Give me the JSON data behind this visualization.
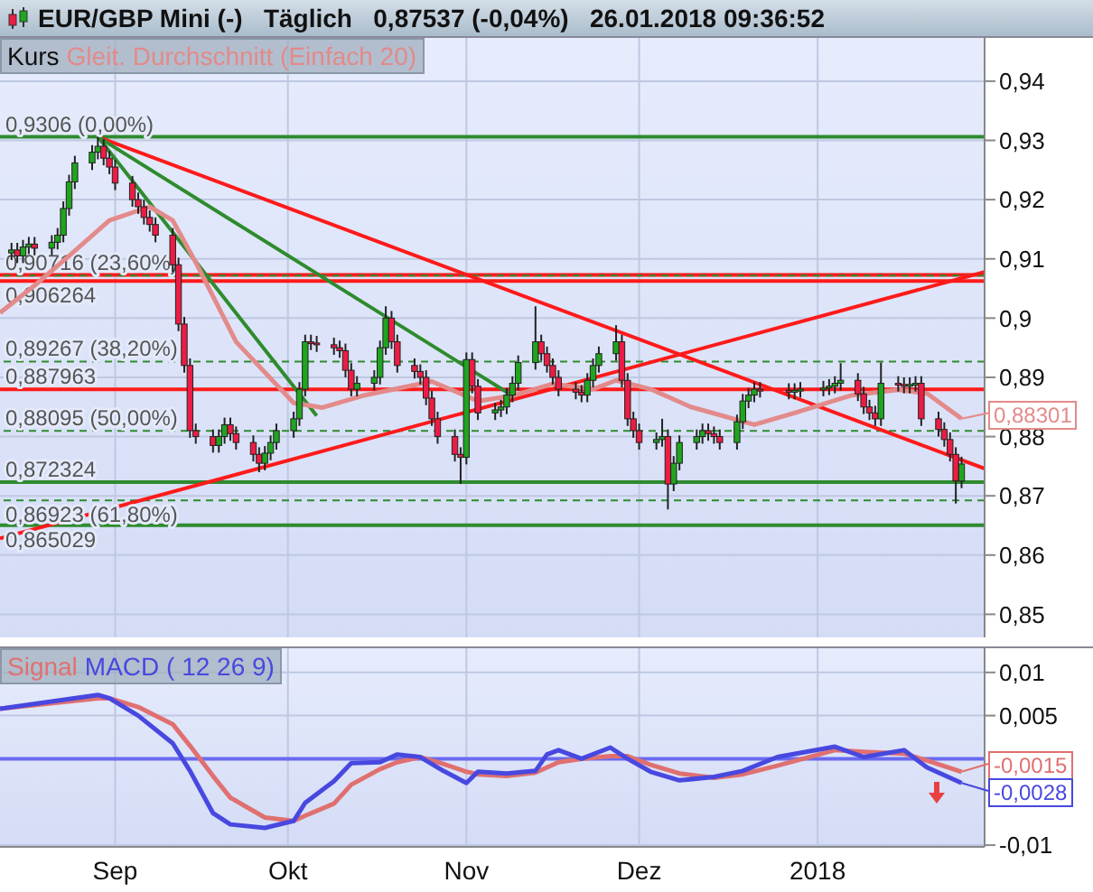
{
  "chart_data": [
    {
      "type": "candlestick",
      "title": "EUR/GBP Mini (-)   Täglich   0,87537 (-0,04%)   26.01.2018 09:36:52",
      "x": [
        "2017-08-14",
        "2017-08-15",
        "2017-08-16",
        "2017-08-17",
        "2017-08-18",
        "2017-08-21",
        "2017-08-22",
        "2017-08-23",
        "2017-08-24",
        "2017-08-25",
        "2017-08-28",
        "2017-08-29",
        "2017-08-30",
        "2017-08-31",
        "2017-09-01",
        "2017-09-04",
        "2017-09-05",
        "2017-09-06",
        "2017-09-07",
        "2017-09-08",
        "2017-09-11",
        "2017-09-12",
        "2017-09-13",
        "2017-09-14",
        "2017-09-15",
        "2017-09-18",
        "2017-09-19",
        "2017-09-20",
        "2017-09-21",
        "2017-09-22",
        "2017-09-25",
        "2017-09-26",
        "2017-09-27",
        "2017-09-28",
        "2017-09-29",
        "2017-10-02",
        "2017-10-03",
        "2017-10-04",
        "2017-10-05",
        "2017-10-06",
        "2017-10-09",
        "2017-10-10",
        "2017-10-11",
        "2017-10-12",
        "2017-10-13",
        "2017-10-16",
        "2017-10-17",
        "2017-10-18",
        "2017-10-19",
        "2017-10-20",
        "2017-10-23",
        "2017-10-24",
        "2017-10-25",
        "2017-10-26",
        "2017-10-27",
        "2017-10-30",
        "2017-10-31",
        "2017-11-01",
        "2017-11-02",
        "2017-11-03",
        "2017-11-06",
        "2017-11-07",
        "2017-11-08",
        "2017-11-09",
        "2017-11-10",
        "2017-11-13",
        "2017-11-14",
        "2017-11-15",
        "2017-11-16",
        "2017-11-17",
        "2017-11-20",
        "2017-11-21",
        "2017-11-22",
        "2017-11-23",
        "2017-11-24",
        "2017-11-27",
        "2017-11-28",
        "2017-11-29",
        "2017-11-30",
        "2017-12-01",
        "2017-12-04",
        "2017-12-05",
        "2017-12-06",
        "2017-12-07",
        "2017-12-08",
        "2017-12-11",
        "2017-12-12",
        "2017-12-13",
        "2017-12-14",
        "2017-12-15",
        "2017-12-18",
        "2017-12-19",
        "2017-12-20",
        "2017-12-21",
        "2017-12-22",
        "2017-12-27",
        "2017-12-28",
        "2017-12-29",
        "2018-01-02",
        "2018-01-03",
        "2018-01-04",
        "2018-01-05",
        "2018-01-08",
        "2018-01-09",
        "2018-01-10",
        "2018-01-11",
        "2018-01-12",
        "2018-01-15",
        "2018-01-16",
        "2018-01-17",
        "2018-01-18",
        "2018-01-19",
        "2018-01-22",
        "2018-01-23",
        "2018-01-24",
        "2018-01-25",
        "2018-01-26"
      ],
      "xlim": [
        "2017-08-12",
        "2018-01-30"
      ],
      "xticks": [
        {
          "value": "2017-09-01",
          "label": null
        },
        {
          "value": "2017-10-01",
          "label": null
        },
        {
          "value": "2017-11-01",
          "label": null
        },
        {
          "value": "2017-12-01",
          "label": null
        },
        {
          "value": "2018-01-01",
          "label": null
        }
      ],
      "ylim": [
        0.8461,
        0.9473
      ],
      "yticks": [
        {
          "value": 0.85,
          "label": "0,85"
        },
        {
          "value": 0.86,
          "label": "0,86"
        },
        {
          "value": 0.87,
          "label": "0,87"
        },
        {
          "value": 0.88,
          "label": "0,88"
        },
        {
          "value": 0.89,
          "label": "0,89"
        },
        {
          "value": 0.9,
          "label": "0,9"
        },
        {
          "value": 0.91,
          "label": "0,91"
        },
        {
          "value": 0.92,
          "label": "0,92"
        },
        {
          "value": 0.93,
          "label": "0,93"
        },
        {
          "value": 0.94,
          "label": "0,94"
        }
      ],
      "tick_labels": "y",
      "grid": true,
      "legend": "top left",
      "series": [
        {
          "name": "Kurs",
          "type": "candlestick",
          "ohlc": [
            [
              0.911,
              0.9127,
              0.9098,
              0.9115
            ],
            [
              0.9115,
              0.9127,
              0.9093,
              0.9105
            ],
            [
              0.9105,
              0.9132,
              0.9093,
              0.912
            ],
            [
              0.912,
              0.9137,
              0.9108,
              0.9125
            ],
            [
              0.9125,
              0.9137,
              0.9106,
              0.9118
            ],
            [
              0.9118,
              0.914,
              0.9106,
              0.9128
            ],
            [
              0.9128,
              0.9152,
              0.9116,
              0.914
            ],
            [
              0.914,
              0.9197,
              0.9128,
              0.9185
            ],
            [
              0.9185,
              0.9242,
              0.9173,
              0.923
            ],
            [
              0.923,
              0.9274,
              0.9218,
              0.9262
            ],
            [
              0.9262,
              0.9292,
              0.925,
              0.928
            ],
            [
              0.928,
              0.9306,
              0.9268,
              0.929
            ],
            [
              0.929,
              0.9302,
              0.9258,
              0.927
            ],
            [
              0.927,
              0.9282,
              0.9243,
              0.9255
            ],
            [
              0.9255,
              0.9267,
              0.9216,
              0.9228
            ],
            [
              0.9228,
              0.924,
              0.9188,
              0.92
            ],
            [
              0.92,
              0.9212,
              0.9176,
              0.9188
            ],
            [
              0.9188,
              0.92,
              0.9158,
              0.917
            ],
            [
              0.917,
              0.9182,
              0.9146,
              0.9158
            ],
            [
              0.9158,
              0.917,
              0.9128,
              0.914
            ],
            [
              0.914,
              0.9152,
              0.9078,
              0.909
            ],
            [
              0.909,
              0.9102,
              0.8978,
              0.899
            ],
            [
              0.899,
              0.9002,
              0.8908,
              0.892
            ],
            [
              0.892,
              0.8932,
              0.8798,
              0.881
            ],
            [
              0.881,
              0.8822,
              0.8788,
              0.88
            ],
            [
              0.88,
              0.8812,
              0.8773,
              0.8785
            ],
            [
              0.8785,
              0.8812,
              0.8773,
              0.88
            ],
            [
              0.88,
              0.8832,
              0.8788,
              0.882
            ],
            [
              0.882,
              0.8832,
              0.8793,
              0.8805
            ],
            [
              0.8805,
              0.8817,
              0.8778,
              0.879
            ],
            [
              0.879,
              0.8802,
              0.8758,
              0.877
            ],
            [
              0.877,
              0.8782,
              0.874,
              0.8755
            ],
            [
              0.8755,
              0.8784,
              0.8743,
              0.8772
            ],
            [
              0.8772,
              0.8802,
              0.876,
              0.879
            ],
            [
              0.879,
              0.8822,
              0.8778,
              0.881
            ],
            [
              0.881,
              0.8842,
              0.8798,
              0.883
            ],
            [
              0.883,
              0.8892,
              0.8818,
              0.888
            ],
            [
              0.888,
              0.8972,
              0.8868,
              0.896
            ],
            [
              0.896,
              0.8972,
              0.8946,
              0.8958
            ],
            [
              0.8958,
              0.897,
              0.8943,
              0.8955
            ],
            [
              0.8955,
              0.8967,
              0.8938,
              0.895
            ],
            [
              0.895,
              0.8962,
              0.8933,
              0.8945
            ],
            [
              0.8945,
              0.8957,
              0.89,
              0.8912
            ],
            [
              0.8912,
              0.8924,
              0.8868,
              0.888
            ],
            [
              0.888,
              0.8902,
              0.8868,
              0.889
            ],
            [
              0.889,
              0.8912,
              0.8878,
              0.89
            ],
            [
              0.89,
              0.8962,
              0.8888,
              0.895
            ],
            [
              0.895,
              0.902,
              0.8938,
              0.9
            ],
            [
              0.9,
              0.9012,
              0.8948,
              0.896
            ],
            [
              0.896,
              0.8972,
              0.8908,
              0.892
            ],
            [
              0.892,
              0.8932,
              0.8898,
              0.891
            ],
            [
              0.891,
              0.8922,
              0.8888,
              0.89
            ],
            [
              0.89,
              0.8912,
              0.8853,
              0.8865
            ],
            [
              0.8865,
              0.8877,
              0.8818,
              0.883
            ],
            [
              0.883,
              0.8842,
              0.8788,
              0.88
            ],
            [
              0.88,
              0.8812,
              0.8758,
              0.877
            ],
            [
              0.877,
              0.8782,
              0.872,
              0.8765
            ],
            [
              0.8765,
              0.8942,
              0.8753,
              0.893
            ],
            [
              0.893,
              0.8942,
              0.8873,
              0.8885
            ],
            [
              0.8885,
              0.8897,
              0.8828,
              0.884
            ],
            [
              0.884,
              0.8857,
              0.8828,
              0.8845
            ],
            [
              0.8845,
              0.8862,
              0.8833,
              0.885
            ],
            [
              0.885,
              0.8882,
              0.8838,
              0.887
            ],
            [
              0.887,
              0.8902,
              0.8858,
              0.889
            ],
            [
              0.889,
              0.8937,
              0.8878,
              0.8925
            ],
            [
              0.8925,
              0.902,
              0.8913,
              0.896
            ],
            [
              0.896,
              0.8972,
              0.8928,
              0.894
            ],
            [
              0.894,
              0.8952,
              0.8908,
              0.892
            ],
            [
              0.892,
              0.8932,
              0.8888,
              0.89
            ],
            [
              0.89,
              0.8912,
              0.8868,
              0.888
            ],
            [
              0.888,
              0.8892,
              0.8863,
              0.8875
            ],
            [
              0.8875,
              0.8887,
              0.8858,
              0.887
            ],
            [
              0.887,
              0.8907,
              0.8858,
              0.8895
            ],
            [
              0.8895,
              0.8932,
              0.8883,
              0.892
            ],
            [
              0.892,
              0.8952,
              0.8908,
              0.894
            ],
            [
              0.894,
              0.8988,
              0.8928,
              0.896
            ],
            [
              0.896,
              0.8972,
              0.8883,
              0.8895
            ],
            [
              0.8895,
              0.8907,
              0.8818,
              0.883
            ],
            [
              0.883,
              0.8842,
              0.8798,
              0.881
            ],
            [
              0.881,
              0.8822,
              0.8778,
              0.879
            ],
            [
              0.879,
              0.8807,
              0.8778,
              0.8795
            ],
            [
              0.8795,
              0.883,
              0.8783,
              0.88
            ],
            [
              0.88,
              0.8812,
              0.8677,
              0.872
            ],
            [
              0.872,
              0.8767,
              0.8708,
              0.8755
            ],
            [
              0.8755,
              0.8802,
              0.8743,
              0.879
            ],
            [
              0.879,
              0.8812,
              0.8778,
              0.88
            ],
            [
              0.88,
              0.8822,
              0.8788,
              0.881
            ],
            [
              0.881,
              0.8822,
              0.8793,
              0.8805
            ],
            [
              0.8805,
              0.8817,
              0.8788,
              0.88
            ],
            [
              0.88,
              0.8812,
              0.8778,
              0.879
            ],
            [
              0.879,
              0.8837,
              0.8778,
              0.8825
            ],
            [
              0.8825,
              0.8872,
              0.8813,
              0.886
            ],
            [
              0.886,
              0.8882,
              0.8848,
              0.887
            ],
            [
              0.887,
              0.8892,
              0.8858,
              0.888
            ],
            [
              0.888,
              0.8892,
              0.8866,
              0.8878
            ],
            [
              0.8878,
              0.889,
              0.8863,
              0.8875
            ],
            [
              0.8875,
              0.889,
              0.8863,
              0.8878
            ],
            [
              0.8878,
              0.8892,
              0.8866,
              0.888
            ],
            [
              0.888,
              0.8894,
              0.8868,
              0.8882
            ],
            [
              0.8882,
              0.8897,
              0.887,
              0.8885
            ],
            [
              0.8885,
              0.8902,
              0.8873,
              0.889
            ],
            [
              0.889,
              0.8924,
              0.8878,
              0.8895
            ],
            [
              0.8895,
              0.8907,
              0.886,
              0.8872
            ],
            [
              0.8872,
              0.8884,
              0.8838,
              0.885
            ],
            [
              0.885,
              0.8862,
              0.8828,
              0.884
            ],
            [
              0.884,
              0.8852,
              0.8818,
              0.883
            ],
            [
              0.883,
              0.8925,
              0.8818,
              0.889
            ],
            [
              0.889,
              0.8902,
              0.8876,
              0.8888
            ],
            [
              0.8888,
              0.89,
              0.8873,
              0.8885
            ],
            [
              0.8885,
              0.89,
              0.8873,
              0.8888
            ],
            [
              0.8888,
              0.8902,
              0.8876,
              0.889
            ],
            [
              0.889,
              0.8902,
              0.8818,
              0.883
            ],
            [
              0.883,
              0.8842,
              0.88,
              0.8812
            ],
            [
              0.8812,
              0.8824,
              0.8783,
              0.8795
            ],
            [
              0.8795,
              0.8807,
              0.8758,
              0.877
            ],
            [
              0.877,
              0.8782,
              0.8687,
              0.8725
            ],
            [
              0.8725,
              0.8766,
              0.8713,
              0.87537
            ]
          ],
          "colors": [
            "#1fa51f",
            "#ec1c45",
            "#1fa51f",
            "#1fa51f",
            "#ec1c45",
            "#1fa51f",
            "#1fa51f",
            "#1fa51f",
            "#1fa51f",
            "#1fa51f",
            "#1fa51f",
            "#1fa51f",
            "#ec1c45",
            "#ec1c45",
            "#ec1c45",
            "#ec1c45",
            "#ec1c45",
            "#ec1c45",
            "#ec1c45",
            "#ec1c45",
            "#ec1c45",
            "#ec1c45",
            "#ec1c45",
            "#ec1c45",
            "#ec1c45",
            "#ec1c45",
            "#1fa51f",
            "#1fa51f",
            "#ec1c45",
            "#ec1c45",
            "#ec1c45",
            "#ec1c45",
            "#1fa51f",
            "#1fa51f",
            "#1fa51f",
            "#1fa51f",
            "#1fa51f",
            "#1fa51f",
            "#ec1c45",
            "#ec1c45",
            "#ec1c45",
            "#ec1c45",
            "#ec1c45",
            "#ec1c45",
            "#1fa51f",
            "#1fa51f",
            "#1fa51f",
            "#1fa51f",
            "#ec1c45",
            "#ec1c45",
            "#ec1c45",
            "#ec1c45",
            "#ec1c45",
            "#ec1c45",
            "#ec1c45",
            "#ec1c45",
            "#ec1c45",
            "#1fa51f",
            "#ec1c45",
            "#ec1c45",
            "#1fa51f",
            "#1fa51f",
            "#1fa51f",
            "#1fa51f",
            "#1fa51f",
            "#1fa51f",
            "#ec1c45",
            "#ec1c45",
            "#ec1c45",
            "#ec1c45",
            "#ec1c45",
            "#ec1c45",
            "#1fa51f",
            "#1fa51f",
            "#1fa51f",
            "#1fa51f",
            "#ec1c45",
            "#ec1c45",
            "#ec1c45",
            "#ec1c45",
            "#1fa51f",
            "#1fa51f",
            "#ec1c45",
            "#1fa51f",
            "#1fa51f",
            "#1fa51f",
            "#1fa51f",
            "#ec1c45",
            "#ec1c45",
            "#ec1c45",
            "#1fa51f",
            "#1fa51f",
            "#1fa51f",
            "#1fa51f",
            "#ec1c45",
            "#ec1c45",
            "#1fa51f",
            "#1fa51f",
            "#1fa51f",
            "#1fa51f",
            "#1fa51f",
            "#1fa51f",
            "#ec1c45",
            "#ec1c45",
            "#ec1c45",
            "#ec1c45",
            "#1fa51f",
            "#ec1c45",
            "#ec1c45",
            "#1fa51f",
            "#1fa51f",
            "#ec1c45",
            "#ec1c45",
            "#ec1c45",
            "#ec1c45",
            "#ec1c45",
            "#1fa51f"
          ]
        },
        {
          "name": "Gleit. Durchschnitt (Einfach 20)",
          "type": "line",
          "color": "#e38a8a",
          "x": [
            "2017-08-12",
            "2017-08-18",
            "2017-08-24",
            "2017-08-31",
            "2017-09-07",
            "2017-09-11",
            "2017-09-15",
            "2017-09-22",
            "2017-10-02",
            "2017-10-07",
            "2017-10-14",
            "2017-10-26",
            "2017-11-03",
            "2017-11-09",
            "2017-11-16",
            "2017-11-23",
            "2017-11-27",
            "2017-12-03",
            "2017-12-10",
            "2017-12-21",
            "2017-12-28",
            "2018-01-07",
            "2018-01-15",
            "2018-01-20",
            "2018-01-26"
          ],
          "values": [
            0.9009,
            0.9055,
            0.9105,
            0.9165,
            0.9188,
            0.9165,
            0.9094,
            0.896,
            0.8857,
            0.8849,
            0.8869,
            0.8893,
            0.886,
            0.8869,
            0.8889,
            0.888,
            0.8895,
            0.888,
            0.885,
            0.882,
            0.884,
            0.887,
            0.8879,
            0.8873,
            0.88301
          ]
        },
        {
          "type": "line",
          "color": "#ff1a1a",
          "x": [
            "2017-08-29",
            "2018-01-30"
          ],
          "values": [
            0.9306,
            0.8746
          ]
        },
        {
          "type": "line",
          "color": "#2e8b2e",
          "x": [
            "2017-08-29",
            "2017-10-06"
          ],
          "values": [
            0.9306,
            0.8835
          ]
        },
        {
          "type": "line",
          "color": "#2e8b2e",
          "x": [
            "2017-08-29",
            "2017-11-09"
          ],
          "values": [
            0.9306,
            0.8869
          ]
        },
        {
          "type": "line",
          "color": "#ff1a1a",
          "x": [
            "2017-08-12",
            "2018-01-30"
          ],
          "values": [
            0.8628,
            0.9078
          ]
        }
      ],
      "ref_lines": [
        {
          "axis": "y",
          "value": 0.9306,
          "label": "0,9306 (0,00%)",
          "color": "#2e8b2e",
          "line_style": "solid"
        },
        {
          "axis": "y",
          "value": 0.9073,
          "color": "#ff1a1a",
          "line_style": "solid"
        },
        {
          "axis": "y",
          "value": 0.90716,
          "label": "0,90716 (23,60%)",
          "color": "#2e8b2e",
          "line_style": "dashed"
        },
        {
          "axis": "y",
          "value": 0.906264,
          "label": "0,906264",
          "color": "#ff1a1a",
          "line_style": "solid"
        },
        {
          "axis": "y",
          "value": 0.89267,
          "label": "0,89267 (38,20%)",
          "color": "#2e8b2e",
          "line_style": "dashed"
        },
        {
          "axis": "y",
          "value": 0.887963,
          "label": "0,887963",
          "color": "#ff1a1a",
          "line_style": "solid"
        },
        {
          "axis": "y",
          "value": 0.88095,
          "label": "0,88095 (50,00%)",
          "color": "#2e8b2e",
          "line_style": "dashed"
        },
        {
          "axis": "y",
          "value": 0.872324,
          "label": "0,872324",
          "color": "#2e8b2e",
          "line_style": "solid"
        },
        {
          "axis": "y",
          "value": 0.86923,
          "label": "0,86923 (61,80%)",
          "color": "#2e8b2e",
          "line_style": "dashed"
        },
        {
          "axis": "y",
          "value": 0.865029,
          "label": "0,865029",
          "color": "#2e8b2e",
          "line_style": "solid"
        }
      ],
      "annotations": [
        {
          "text": "0,88301",
          "x": "2018-01-26",
          "y": 0.88301
        }
      ]
    },
    {
      "type": "line",
      "x": [
        "2017-08-12",
        "2017-08-29",
        "2017-08-31",
        "2017-09-05",
        "2017-09-11",
        "2017-09-14",
        "2017-09-18",
        "2017-09-21",
        "2017-09-27",
        "2017-10-02",
        "2017-10-04",
        "2017-10-09",
        "2017-10-12",
        "2017-10-17",
        "2017-10-20",
        "2017-10-24",
        "2017-10-28",
        "2017-11-01",
        "2017-11-03",
        "2017-11-08",
        "2017-11-13",
        "2017-11-15",
        "2017-11-17",
        "2017-11-21",
        "2017-11-26",
        "2017-11-29",
        "2017-12-03",
        "2017-12-08",
        "2017-12-14",
        "2017-12-19",
        "2017-12-25",
        "2018-01-04",
        "2018-01-09",
        "2018-01-16",
        "2018-01-20",
        "2018-01-26"
      ],
      "xlim": [
        "2017-08-12",
        "2018-01-30"
      ],
      "xticks": [
        {
          "value": "2017-09-01",
          "label": "Sep"
        },
        {
          "value": "2017-10-01",
          "label": "Okt"
        },
        {
          "value": "2017-11-01",
          "label": "Nov"
        },
        {
          "value": "2017-12-01",
          "label": "Dez"
        },
        {
          "value": "2018-01-01",
          "label": "2018"
        }
      ],
      "ylim": [
        -0.0102,
        0.0128
      ],
      "yticks": [
        {
          "value": -0.01,
          "label": "-0,01"
        },
        {
          "value": 0.005,
          "label": "0,005"
        },
        {
          "value": 0.01,
          "label": "0,01"
        }
      ],
      "grid": true,
      "legend": "top left",
      "series": [
        {
          "name": "Signal",
          "color": "#e07070",
          "values": [
            0.0058,
            0.007,
            0.007,
            0.006,
            0.004,
            0.0015,
            -0.002,
            -0.0045,
            -0.0068,
            -0.0072,
            -0.0066,
            -0.0052,
            -0.003,
            -0.0012,
            -0.0004,
            0.0002,
            -0.0006,
            -0.0015,
            -0.0018,
            -0.002,
            -0.0016,
            -0.001,
            -0.0004,
            0.0,
            0.0003,
            0.0003,
            -0.0007,
            -0.0017,
            -0.0022,
            -0.0018,
            -0.0008,
            0.001,
            0.0008,
            0.0006,
            -0.0002,
            -0.0015
          ]
        },
        {
          "name": "MACD ( 12 26 9)",
          "color": "#4848e0",
          "values": [
            0.0058,
            0.0074,
            0.007,
            0.005,
            0.0018,
            -0.0014,
            -0.0063,
            -0.0076,
            -0.008,
            -0.0072,
            -0.0051,
            -0.0026,
            -0.0005,
            -0.0004,
            0.0005,
            0.0002,
            -0.0014,
            -0.0028,
            -0.0015,
            -0.0017,
            -0.0014,
            0.0005,
            0.001,
            0.0,
            0.0013,
            0.0,
            -0.0015,
            -0.0025,
            -0.0021,
            -0.0014,
            0.0002,
            0.0014,
            0.0002,
            0.001,
            -0.001,
            -0.0028
          ]
        }
      ],
      "ref_lines": [
        {
          "axis": "y",
          "value": 0,
          "color": "#6a6af0",
          "line_style": "solid"
        }
      ],
      "annotations": [
        {
          "text": "-0,0015",
          "x": "2018-01-26",
          "y": -0.0015
        },
        {
          "text": "-0,0028",
          "x": "2018-01-26",
          "y": -0.0028
        }
      ]
    }
  ]
}
